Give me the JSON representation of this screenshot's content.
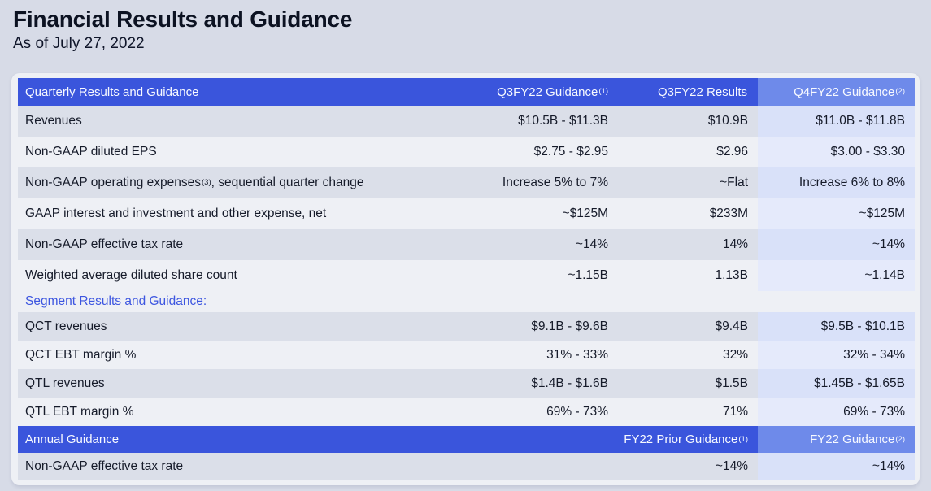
{
  "page": {
    "title": "Financial Results and Guidance",
    "subtitle": "As of July 27, 2022"
  },
  "colors": {
    "page_bg": "#d7dbe7",
    "card_bg": "#eef0f5",
    "header_blue": "#3a55dc",
    "header_blue_light": "#6e8aea",
    "row_gray": "#dbdfe9",
    "column_tint_dark": "#d9e1f9",
    "column_tint_light": "#e5eafb",
    "accent_text_blue": "#3d56e0"
  },
  "quarterly": {
    "section_title": "Quarterly Results and Guidance",
    "columns": [
      {
        "label": "Q3FY22 Guidance",
        "sup": "(1)"
      },
      {
        "label": "Q3FY22 Results",
        "sup": ""
      },
      {
        "label": "Q4FY22 Guidance",
        "sup": "(2)"
      }
    ],
    "rows": [
      {
        "label": "Revenues",
        "sup": "",
        "label2": "",
        "guidance": "$10.5B - $11.3B",
        "results": "$10.9B",
        "next": "$11.0B - $11.8B"
      },
      {
        "label": "Non-GAAP diluted EPS",
        "sup": "",
        "label2": "",
        "guidance": "$2.75 - $2.95",
        "results": "$2.96",
        "next": "$3.00 - $3.30"
      },
      {
        "label": "Non-GAAP operating expenses",
        "sup": "(3)",
        "label2": ", sequential quarter change",
        "guidance": "Increase 5% to 7%",
        "results": "~Flat",
        "next": "Increase 6% to 8%"
      },
      {
        "label": "GAAP interest and investment and other expense, net",
        "sup": "",
        "label2": "",
        "guidance": "~$125M",
        "results": "$233M",
        "next": "~$125M"
      },
      {
        "label": "Non-GAAP effective tax rate",
        "sup": "",
        "label2": "",
        "guidance": "~14%",
        "results": "14%",
        "next": "~14%"
      },
      {
        "label": "Weighted average diluted share count",
        "sup": "",
        "label2": "",
        "guidance": "~1.15B",
        "results": "1.13B",
        "next": "~1.14B"
      }
    ]
  },
  "segment": {
    "section_title": "Segment Results and Guidance:",
    "rows": [
      {
        "label": "QCT revenues",
        "guidance": "$9.1B - $9.6B",
        "results": "$9.4B",
        "next": "$9.5B - $10.1B"
      },
      {
        "label": "QCT EBT margin %",
        "guidance": "31% - 33%",
        "results": "32%",
        "next": "32% - 34%"
      },
      {
        "label": "QTL revenues",
        "guidance": "$1.4B - $1.6B",
        "results": "$1.5B",
        "next": "$1.45B - $1.65B"
      },
      {
        "label": "QTL EBT margin %",
        "guidance": "69% - 73%",
        "results": "71%",
        "next": "69% - 73%"
      }
    ]
  },
  "annual": {
    "section_title": "Annual Guidance",
    "columns": [
      {
        "label": "FY22 Prior Guidance",
        "sup": "(1)"
      },
      {
        "label": "FY22 Guidance",
        "sup": "(2)"
      }
    ],
    "rows": [
      {
        "label": "Non-GAAP effective tax rate",
        "guidance": "",
        "results": "~14%",
        "next": "~14%"
      }
    ]
  }
}
